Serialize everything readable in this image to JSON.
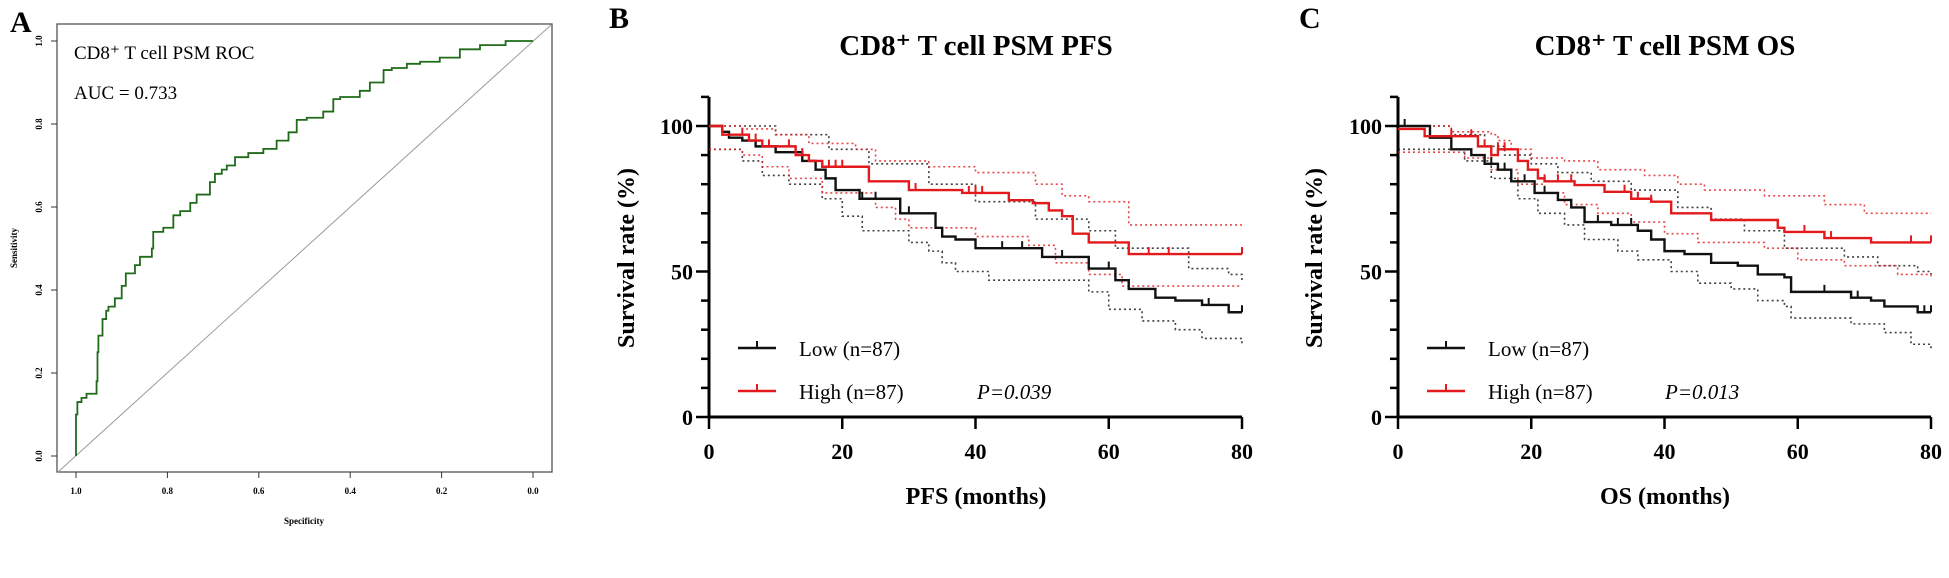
{
  "panel_labels": [
    "A",
    "B",
    "C"
  ],
  "colors": {
    "roc": "#1f6b1a",
    "diag": "#9a9a9a",
    "low": "#111111",
    "high": "#e3191c"
  },
  "chart_data": [
    {
      "type": "line",
      "panel": "A",
      "title": "CD8⁺ T cell PSM ROC",
      "annotation": "AUC = 0.733",
      "xlabel": "Specificity",
      "ylabel": "Sensitivity",
      "xlim": [
        1.0,
        0.0
      ],
      "ylim": [
        0.0,
        1.0
      ],
      "xticks": [
        "1.0",
        "0.8",
        "0.6",
        "0.4",
        "0.2",
        "0.0"
      ],
      "xtick_values": [
        1.0,
        0.8,
        0.6,
        0.4,
        0.2,
        0.0
      ],
      "yticks": [
        "0.0",
        "0.2",
        "0.4",
        "0.6",
        "0.8",
        "1.0"
      ],
      "ytick_values": [
        0.0,
        0.2,
        0.4,
        0.6,
        0.8,
        1.0
      ],
      "series": [
        {
          "name": "ROC",
          "specificity": [
            1.0,
            1.0,
            0.997,
            0.988,
            0.977,
            0.955,
            0.953,
            0.951,
            0.942,
            0.934,
            0.929,
            0.915,
            0.9,
            0.891,
            0.871,
            0.86,
            0.834,
            0.831,
            0.809,
            0.787,
            0.772,
            0.75,
            0.736,
            0.707,
            0.696,
            0.681,
            0.67,
            0.652,
            0.623,
            0.59,
            0.561,
            0.535,
            0.517,
            0.495,
            0.459,
            0.437,
            0.422,
            0.379,
            0.357,
            0.327,
            0.309,
            0.276,
            0.247,
            0.204,
            0.16,
            0.116,
            0.06,
            0.0
          ],
          "sensitivity": [
            0.0,
            0.06,
            0.1,
            0.13,
            0.14,
            0.15,
            0.18,
            0.25,
            0.29,
            0.33,
            0.35,
            0.36,
            0.38,
            0.41,
            0.44,
            0.46,
            0.48,
            0.5,
            0.54,
            0.55,
            0.58,
            0.59,
            0.61,
            0.63,
            0.66,
            0.68,
            0.69,
            0.7,
            0.72,
            0.73,
            0.74,
            0.76,
            0.78,
            0.81,
            0.815,
            0.83,
            0.86,
            0.865,
            0.88,
            0.9,
            0.93,
            0.935,
            0.945,
            0.95,
            0.96,
            0.98,
            0.99,
            1.0
          ]
        },
        {
          "name": "Reference",
          "specificity": [
            1.0,
            0.0
          ],
          "sensitivity": [
            0.0,
            1.0
          ]
        }
      ]
    },
    {
      "type": "line",
      "panel": "B",
      "title": "CD8⁺ T cell PSM PFS",
      "xlabel": "PFS (months)",
      "ylabel": "Survival rate (%)",
      "xlim": [
        0,
        80
      ],
      "ylim": [
        0,
        110
      ],
      "xticks": [
        "0",
        "20",
        "40",
        "60",
        "80"
      ],
      "xtick_values": [
        0,
        20,
        40,
        60,
        80
      ],
      "yticks": [
        "0",
        "50",
        "100"
      ],
      "ytick_values": [
        0,
        50,
        100
      ],
      "p_value": "P=0.039",
      "legend": [
        "Low (n=87)",
        "High (n=87)"
      ],
      "series": [
        {
          "name": "Low (n=87)",
          "group": "low",
          "time": [
            0,
            2,
            3,
            5,
            7,
            10,
            14,
            16,
            17.5,
            19,
            22.6,
            28.7,
            34,
            35,
            37,
            40,
            50,
            57,
            61,
            63,
            67,
            70,
            74,
            78,
            80
          ],
          "survival": [
            100,
            98,
            96,
            95,
            93,
            91,
            88,
            85,
            82,
            78,
            75,
            70,
            65,
            62,
            61,
            58,
            55,
            51,
            47,
            44,
            41,
            40,
            38.5,
            36,
            36
          ],
          "censored": [
            23,
            25,
            30,
            44,
            47,
            53,
            60,
            75,
            78,
            80
          ],
          "ci_upper": {
            "time": [
              0,
              10,
              18,
              24,
              33,
              40,
              49,
              57,
              61,
              72,
              78,
              80
            ],
            "survival": [
              100,
              97,
              92,
              87,
              80,
              74,
              68,
              64,
              58,
              51,
              49,
              47
            ]
          },
          "ci_lower": {
            "time": [
              0,
              1,
              5,
              8,
              12,
              17,
              20,
              23,
              30,
              33,
              35,
              37,
              42,
              57,
              60,
              65,
              70,
              74,
              80
            ],
            "survival": [
              92,
              92,
              88,
              83,
              80,
              75,
              69,
              64,
              60,
              57,
              53,
              50,
              47,
              43,
              37,
              33,
              30,
              27,
              25
            ]
          }
        },
        {
          "name": "High (n=87)",
          "group": "high",
          "time": [
            0,
            2,
            6,
            8,
            13,
            15,
            17,
            24,
            30,
            38,
            45,
            48.6,
            51,
            53,
            54.6,
            57,
            63,
            80
          ],
          "survival": [
            100,
            97,
            95,
            93,
            90,
            88,
            86,
            81,
            78,
            77,
            74.5,
            73.5,
            71,
            69,
            63,
            60,
            56,
            56
          ],
          "censored": [
            5,
            7,
            9,
            12,
            14,
            18,
            19,
            20,
            31,
            39,
            40,
            41,
            66,
            69,
            80
          ],
          "ci_upper": {
            "time": [
              0,
              5,
              10,
              15,
              22,
              25,
              33,
              40,
              49,
              53,
              57,
              63,
              80
            ],
            "survival": [
              100,
              99,
              97,
              94,
              92,
              88,
              86,
              84,
              80,
              76,
              74,
              66,
              66
            ]
          },
          "ci_lower": {
            "time": [
              0,
              5,
              8,
              12,
              17,
              25,
              28,
              30,
              40,
              48,
              52,
              57,
              62,
              80
            ],
            "survival": [
              92,
              90,
              86,
              82,
              77,
              72,
              68,
              65,
              62,
              59,
              53,
              49,
              45,
              45
            ]
          }
        }
      ]
    },
    {
      "type": "line",
      "panel": "C",
      "title": "CD8⁺ T cell PSM OS",
      "xlabel": "OS (months)",
      "ylabel": "Survival rate (%)",
      "xlim": [
        0,
        80
      ],
      "ylim": [
        0,
        110
      ],
      "xticks": [
        "0",
        "20",
        "40",
        "60",
        "80"
      ],
      "xtick_values": [
        0,
        20,
        40,
        60,
        80
      ],
      "yticks": [
        "0",
        "50",
        "100"
      ],
      "ytick_values": [
        0,
        50,
        100
      ],
      "p_value": "P=0.013",
      "legend": [
        "Low (n=87)",
        "High (n=87)"
      ],
      "series": [
        {
          "name": "Low (n=87)",
          "group": "low",
          "time": [
            0,
            4.8,
            8,
            11,
            13,
            15,
            17,
            20.5,
            24,
            26,
            28,
            32,
            36,
            38,
            40,
            43,
            47,
            51,
            54,
            58,
            59,
            68,
            71,
            73,
            78,
            80
          ],
          "survival": [
            100,
            96,
            92,
            90,
            87,
            85,
            81,
            77,
            74.6,
            72,
            67,
            66,
            64,
            61,
            57,
            56,
            53,
            52,
            49,
            48,
            43,
            41,
            40,
            38,
            36,
            36
          ],
          "censored": [
            1,
            14,
            16,
            19,
            22,
            30,
            33,
            35,
            36,
            64,
            68,
            69,
            79,
            80
          ],
          "ci_upper": {
            "time": [
              0,
              5,
              8,
              13,
              16,
              20,
              24,
              29,
              35,
              42,
              47,
              52,
              58,
              67,
              72,
              78,
              80
            ],
            "survival": [
              100,
              100,
              97,
              93,
              90,
              87,
              84,
              81,
              78,
              72,
              68,
              64,
              58,
              55,
              52,
              50,
              49
            ]
          },
          "ci_lower": {
            "time": [
              0,
              5,
              10,
              14,
              18,
              21,
              25,
              28,
              33,
              36,
              41,
              45,
              50,
              54,
              58,
              59,
              68,
              73,
              77,
              80
            ],
            "survival": [
              92,
              92,
              88,
              82,
              75,
              70,
              66,
              61,
              57,
              54,
              50,
              46,
              44,
              40,
              38,
              34,
              32,
              29,
              25,
              23
            ]
          }
        },
        {
          "name": "High (n=87)",
          "group": "high",
          "time": [
            0,
            4,
            12,
            14,
            15,
            18,
            19.5,
            21,
            22,
            26.5,
            31,
            35,
            38,
            41,
            47,
            57,
            58,
            64,
            71,
            80
          ],
          "survival": [
            99,
            96.5,
            93,
            90,
            92,
            88,
            85,
            82,
            81,
            79.7,
            77.4,
            75,
            74,
            70,
            67.7,
            65,
            63.6,
            61.5,
            60,
            60
          ],
          "censored": [
            8,
            11,
            13,
            15,
            16,
            18,
            22,
            24,
            26,
            34,
            36,
            38,
            47,
            61,
            65,
            77,
            80
          ],
          "ci_upper": {
            "time": [
              0,
              5,
              8,
              14,
              15,
              17,
              20,
              25,
              30,
              37,
              42,
              46,
              55,
              64,
              70,
              80
            ],
            "survival": [
              100,
              100,
              98,
              97,
              95,
              92,
              89,
              88,
              85,
              83,
              80,
              78,
              76,
              73,
              70,
              70
            ]
          },
          "ci_lower": {
            "time": [
              0,
              10,
              14,
              18,
              22,
              25,
              30,
              35,
              40,
              45,
              55,
              60,
              67,
              75,
              80
            ],
            "survival": [
              91,
              89,
              85,
              80,
              77,
              73,
              70,
              67,
              63,
              60,
              58,
              54,
              52,
              49,
              48
            ]
          }
        }
      ]
    }
  ]
}
